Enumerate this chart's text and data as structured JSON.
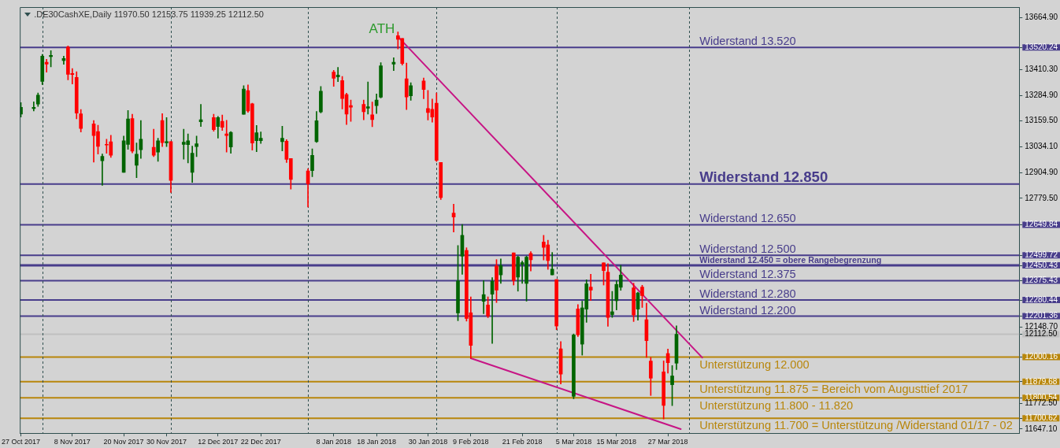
{
  "chart_data": {
    "type": "candlestick",
    "title": ".DE30CashXE,Daily 11970.50 12153.75 11939.25 12112.50",
    "x": [
      "2017-10-27",
      "2017-10-30",
      "2017-10-31",
      "2017-11-01",
      "2017-11-02",
      "2017-11-03",
      "2017-11-06",
      "2017-11-07",
      "2017-11-08",
      "2017-11-09",
      "2017-11-10",
      "2017-11-13",
      "2017-11-14",
      "2017-11-15",
      "2017-11-16",
      "2017-11-17",
      "2017-11-20",
      "2017-11-21",
      "2017-11-22",
      "2017-11-23",
      "2017-11-24",
      "2017-11-27",
      "2017-11-28",
      "2017-11-29",
      "2017-11-30",
      "2017-12-01",
      "2017-12-04",
      "2017-12-05",
      "2017-12-06",
      "2017-12-07",
      "2017-12-08",
      "2017-12-11",
      "2017-12-12",
      "2017-12-13",
      "2017-12-14",
      "2017-12-15",
      "2017-12-18",
      "2017-12-19",
      "2017-12-20",
      "2017-12-21",
      "2017-12-22",
      "2017-12-27",
      "2017-12-28",
      "2017-12-29",
      "2018-01-02",
      "2018-01-03",
      "2018-01-04",
      "2018-01-05",
      "2018-01-08",
      "2018-01-09",
      "2018-01-10",
      "2018-01-11",
      "2018-01-12",
      "2018-01-15",
      "2018-01-16",
      "2018-01-17",
      "2018-01-18",
      "2018-01-19",
      "2018-01-22",
      "2018-01-23",
      "2018-01-24",
      "2018-01-25",
      "2018-01-26",
      "2018-01-29",
      "2018-01-30",
      "2018-01-31",
      "2018-02-01",
      "2018-02-02",
      "2018-02-05",
      "2018-02-06",
      "2018-02-07",
      "2018-02-08",
      "2018-02-09",
      "2018-02-12",
      "2018-02-13",
      "2018-02-14",
      "2018-02-15",
      "2018-02-16",
      "2018-02-19",
      "2018-02-20",
      "2018-02-21",
      "2018-02-22",
      "2018-02-23",
      "2018-02-26",
      "2018-02-27",
      "2018-02-28",
      "2018-03-01",
      "2018-03-02",
      "2018-03-05",
      "2018-03-06",
      "2018-03-07",
      "2018-03-08",
      "2018-03-09",
      "2018-03-12",
      "2018-03-13",
      "2018-03-14",
      "2018-03-15",
      "2018-03-16",
      "2018-03-19",
      "2018-03-20",
      "2018-03-21",
      "2018-03-22",
      "2018-03-23",
      "2018-03-26",
      "2018-03-27",
      "2018-03-28",
      "2018-03-29"
    ],
    "ohlc": [
      [
        13193,
        13249,
        13178,
        13226
      ],
      [
        13220,
        13253,
        13208,
        13226
      ],
      [
        13242,
        13297,
        13231,
        13286
      ],
      [
        13353,
        13486,
        13338,
        13477
      ],
      [
        13447,
        13462,
        13399,
        13438
      ],
      [
        13475,
        13504,
        13425,
        13481
      ],
      [
        13456,
        13477,
        13437,
        13466
      ],
      [
        13522,
        13527,
        13361,
        13388
      ],
      [
        13392,
        13416,
        13341,
        13387
      ],
      [
        13373,
        13401,
        13170,
        13198
      ],
      [
        13194,
        13215,
        13105,
        13122
      ],
      [
        13145,
        13161,
        12957,
        13088
      ],
      [
        13107,
        13138,
        12997,
        13034
      ],
      [
        12964,
        12997,
        12843,
        12986
      ],
      [
        13043,
        13070,
        13001,
        13041
      ],
      [
        13057,
        13089,
        12980,
        12991
      ],
      [
        12907,
        13085,
        12907,
        13062
      ],
      [
        13044,
        13211,
        13020,
        13169
      ],
      [
        13171,
        13192,
        13003,
        13011
      ],
      [
        12942,
        13051,
        12881,
        12996
      ],
      [
        13018,
        13161,
        12976,
        13070
      ],
      [
        13030,
        13119,
        12984,
        12991
      ],
      [
        13006,
        13074,
        12961,
        13062
      ],
      [
        13161,
        13195,
        13033,
        13053
      ],
      [
        13052,
        13176,
        13033,
        13058
      ],
      [
        13058,
        13058,
        12808,
        12867
      ],
      [
        13044,
        13119,
        12972,
        13055
      ],
      [
        13043,
        13096,
        12953,
        13062
      ],
      [
        12907,
        13036,
        12858,
        13001
      ],
      [
        13033,
        13085,
        12984,
        13047
      ],
      [
        13155,
        13241,
        13132,
        13165
      ],
      [
        13176,
        13192,
        13109,
        13117
      ],
      [
        13132,
        13182,
        13075,
        13176
      ],
      [
        13157,
        13188,
        13113,
        13128
      ],
      [
        13096,
        13162,
        13006,
        13088
      ],
      [
        13032,
        13107,
        13001,
        13103
      ],
      [
        13192,
        13332,
        13192,
        13316
      ],
      [
        13308,
        13336,
        13202,
        13208
      ],
      [
        13243,
        13246,
        13016,
        13051
      ],
      [
        13062,
        13137,
        13008,
        13101
      ],
      [
        13062,
        13105,
        13049,
        13074
      ],
      [
        13058,
        13133,
        13012,
        13074
      ],
      [
        13060,
        13068,
        12955,
        12971
      ],
      [
        12975,
        12975,
        12825,
        12872
      ],
      [
        12914,
        12925,
        12737,
        12851
      ],
      [
        12916,
        13022,
        12886,
        12990
      ],
      [
        13058,
        13206,
        13054,
        13160
      ],
      [
        13203,
        13328,
        13199,
        13305
      ],
      [
        13399,
        13408,
        13329,
        13369
      ],
      [
        13375,
        13422,
        13352,
        13384
      ],
      [
        13357,
        13378,
        13218,
        13269
      ],
      [
        13289,
        13296,
        13142,
        13193
      ],
      [
        13235,
        13262,
        13157,
        13227
      ],
      [
        13241,
        13262,
        13165,
        13204
      ],
      [
        13222,
        13351,
        13193,
        13229
      ],
      [
        13189,
        13252,
        13131,
        13166
      ],
      [
        13234,
        13292,
        13196,
        13262
      ],
      [
        13276,
        13445,
        13272,
        13430
      ],
      [
        13438,
        13469,
        13406,
        13447
      ],
      [
        13578,
        13596,
        13513,
        13560
      ],
      [
        13564,
        13564,
        13433,
        13441
      ],
      [
        13366,
        13443,
        13215,
        13277
      ],
      [
        13283,
        13347,
        13260,
        13332
      ],
      [
        13355,
        13370,
        13268,
        13314
      ],
      [
        13220,
        13309,
        13164,
        13201
      ],
      [
        13216,
        13267,
        13153,
        13178
      ],
      [
        13246,
        13297,
        12960,
        12966
      ],
      [
        12956,
        12956,
        12774,
        12783
      ],
      [
        12707,
        12751,
        12614,
        12688
      ],
      [
        12217,
        12548,
        12179,
        12374
      ],
      [
        12496,
        12651,
        12407,
        12598
      ],
      [
        12524,
        12537,
        12177,
        12190
      ],
      [
        12218,
        12296,
        11994,
        12058
      ],
      [
        12274,
        12376,
        12213,
        12307
      ],
      [
        12256,
        12296,
        12194,
        12202
      ],
      [
        12309,
        12391,
        12068,
        12372
      ],
      [
        12448,
        12479,
        12268,
        12329
      ],
      [
        12404,
        12482,
        12362,
        12449
      ],
      [
        12512,
        12512,
        12354,
        12376
      ],
      [
        12393,
        12496,
        12324,
        12491
      ],
      [
        12456,
        12472,
        12362,
        12464
      ],
      [
        12362,
        12496,
        12275,
        12491
      ],
      [
        12509,
        12518,
        12423,
        12478
      ],
      [
        12565,
        12598,
        12477,
        12539
      ],
      [
        12551,
        12574,
        12431,
        12474
      ],
      [
        12404,
        12514,
        12404,
        12432
      ],
      [
        12381,
        12381,
        12135,
        12153
      ],
      [
        12041,
        12077,
        11869,
        11917
      ],
      [
        11808,
        12114,
        11796,
        12109
      ],
      [
        12237,
        12258,
        12101,
        12110
      ],
      [
        12064,
        12275,
        12010,
        12242
      ],
      [
        12236,
        12380,
        12171,
        12360
      ],
      [
        12344,
        12407,
        12278,
        12329
      ],
      [
        12463,
        12463,
        12354,
        12425
      ],
      [
        12417,
        12459,
        12152,
        12195
      ],
      [
        12209,
        12323,
        12195,
        12223
      ],
      [
        12277,
        12375,
        12232,
        12357
      ],
      [
        12343,
        12451,
        12328,
        12403
      ],
      [
        12340,
        12363,
        12175,
        12207
      ],
      [
        12236,
        12319,
        12182,
        12315
      ],
      [
        12344,
        12353,
        12244,
        12302
      ],
      [
        12184,
        12265,
        11999,
        12081
      ],
      [
        11981,
        11999,
        11812,
        11897
      ],
      [
        11928,
        11982,
        11697,
        11763
      ],
      [
        12018,
        12040,
        11922,
        11973
      ],
      [
        11865,
        11959,
        11762,
        11908
      ],
      [
        11970.5,
        12153.75,
        11939.25,
        12112.5
      ]
    ],
    "colors": [
      "#006400",
      "#006400",
      "#006400",
      "#006400",
      "#ff0000",
      "#006400",
      "#006400",
      "#ff0000",
      "#ff0000",
      "#ff0000",
      "#ff0000",
      "#ff0000",
      "#ff0000",
      "#006400",
      "#ff0000",
      "#ff0000",
      "#006400",
      "#006400",
      "#ff0000",
      "#006400",
      "#006400",
      "#ff0000",
      "#006400",
      "#ff0000",
      "#006400",
      "#ff0000",
      "#006400",
      "#006400",
      "#006400",
      "#006400",
      "#006400",
      "#ff0000",
      "#006400",
      "#ff0000",
      "#ff0000",
      "#006400",
      "#006400",
      "#ff0000",
      "#ff0000",
      "#006400",
      "#006400",
      "#006400",
      "#ff0000",
      "#ff0000",
      "#ff0000",
      "#006400",
      "#006400",
      "#006400",
      "#ff0000",
      "#006400",
      "#ff0000",
      "#ff0000",
      "#ff0000",
      "#ff0000",
      "#006400",
      "#ff0000",
      "#006400",
      "#006400",
      "#006400",
      "#ff0000",
      "#ff0000",
      "#ff0000",
      "#006400",
      "#ff0000",
      "#ff0000",
      "#ff0000",
      "#ff0000",
      "#ff0000",
      "#ff0000",
      "#006400",
      "#006400",
      "#ff0000",
      "#ff0000",
      "#006400",
      "#ff0000",
      "#006400",
      "#ff0000",
      "#006400",
      "#ff0000",
      "#006400",
      "#006400",
      "#006400",
      "#ff0000",
      "#ff0000",
      "#ff0000",
      "#006400",
      "#ff0000",
      "#ff0000",
      "#006400",
      "#ff0000",
      "#006400",
      "#006400",
      "#ff0000",
      "#ff0000",
      "#ff0000",
      "#006400",
      "#006400",
      "#006400",
      "#ff0000",
      "#006400",
      "#ff0000",
      "#ff0000",
      "#ff0000",
      "#ff0000",
      "#ff0000",
      "#006400",
      "#006400"
    ],
    "series": [
      {
        "type": "line",
        "x": [
          "2018-01-23",
          "2018-04-04"
        ],
        "values": [
          13573,
          11998
        ],
        "color": "#c71585"
      },
      {
        "type": "line",
        "x": [
          "2018-02-09",
          "2018-03-30"
        ],
        "values": [
          11995,
          11647
        ],
        "color": "#c71585"
      }
    ],
    "xlim": [
      "2017-10-26T18:00",
      "2018-06-17"
    ],
    "xticks": [
      {
        "value": "2017-10-27",
        "label": "27 Oct 2017"
      },
      {
        "value": "2017-11-08",
        "label": "8 Nov 2017"
      },
      {
        "value": "2017-11-20",
        "label": "20 Nov 2017"
      },
      {
        "value": "2017-11-30",
        "label": "30 Nov 2017"
      },
      {
        "value": "2017-12-12",
        "label": "12 Dec 2017"
      },
      {
        "value": "2017-12-22",
        "label": "22 Dec 2017"
      },
      {
        "value": "2018-01-08",
        "label": "8 Jan 2018"
      },
      {
        "value": "2018-01-18",
        "label": "18 Jan 2018"
      },
      {
        "value": "2018-01-30",
        "label": "30 Jan 2018"
      },
      {
        "value": "2018-02-09",
        "label": "9 Feb 2018"
      },
      {
        "value": "2018-02-21",
        "label": "21 Feb 2018"
      },
      {
        "value": "2018-03-05",
        "label": "5 Mar 2018"
      },
      {
        "value": "2018-03-15",
        "label": "15 Mar 2018"
      },
      {
        "value": "2018-03-27",
        "label": "27 Mar 2018"
      }
    ],
    "ylim": [
      11627,
      13718
    ],
    "yticks": [
      {
        "value": 13664.9,
        "label": "13664.90"
      },
      {
        "value": 13520.24,
        "label": "13520.24"
      },
      {
        "value": 13410.3,
        "label": "13410.30"
      },
      {
        "value": 13284.9,
        "label": "13284.90"
      },
      {
        "value": 13159.5,
        "label": "13159.50"
      },
      {
        "value": 13034.1,
        "label": "13034.10"
      },
      {
        "value": 12904.9,
        "label": "12904.90"
      },
      {
        "value": 12779.5,
        "label": "12779.50"
      },
      {
        "value": 12649.84,
        "label": "12649.84"
      },
      {
        "value": 12499.72,
        "label": "12499.72"
      },
      {
        "value": 12450.43,
        "label": "12450.43"
      },
      {
        "value": 12375.43,
        "label": "12375.43"
      },
      {
        "value": 12280.44,
        "label": "12280.44"
      },
      {
        "value": 12201.36,
        "label": "12201.36"
      },
      {
        "value": 12148.7,
        "label": "12148.70"
      },
      {
        "value": 12112.5,
        "label": "12112.50"
      },
      {
        "value": 12000.16,
        "label": "12000.16"
      },
      {
        "value": 11879.68,
        "label": "11879.68"
      },
      {
        "value": 11800.54,
        "label": "11800.54"
      },
      {
        "value": 11772.5,
        "label": "11772.50"
      },
      {
        "value": 11700.62,
        "label": "11700.62"
      },
      {
        "value": 11647.1,
        "label": "11647.10"
      }
    ],
    "ref_lines": [
      {
        "axis": "y",
        "value": 13520.24,
        "label": "Widerstand 13.520",
        "color": "#483d8b"
      },
      {
        "axis": "y",
        "value": 12850,
        "label": "Widerstand 12.850",
        "color": "#483d8b"
      },
      {
        "axis": "y",
        "value": 12649.84,
        "label": "Widerstand 12.650",
        "color": "#483d8b"
      },
      {
        "axis": "y",
        "value": 12499.72,
        "label": "Widerstand 12.500",
        "color": "#483d8b"
      },
      {
        "axis": "y",
        "value": 12450.43,
        "label": "Widerstand 12.450 = obere Rangebegrenzung",
        "color": "#483d8b"
      },
      {
        "axis": "y",
        "value": 12375.43,
        "label": "Widerstand 12.375",
        "color": "#483d8b"
      },
      {
        "axis": "y",
        "value": 12280.44,
        "label": "Widerstand 12.280",
        "color": "#483d8b"
      },
      {
        "axis": "y",
        "value": 12201.36,
        "label": "Widerstand 12.200",
        "color": "#483d8b"
      },
      {
        "axis": "y",
        "value": 12112.5,
        "label": null,
        "color": "#c0c0c0"
      },
      {
        "axis": "y",
        "value": 12000.16,
        "label": "Unterstützung 12.000",
        "color": "#b8860b"
      },
      {
        "axis": "y",
        "value": 11879.68,
        "label": "Unterstützung 11.875 = Bereich vom Augusttief 2017",
        "color": "#b8860b"
      },
      {
        "axis": "y",
        "value": 11800.54,
        "label": "Unterstützung 11.800 - 11.820",
        "color": "#b8860b"
      },
      {
        "axis": "y",
        "value": 11700.62,
        "label": "Unterstützung 11.700 = Unterstützung /Widerstand 01/17 - 02",
        "color": "#b8860b"
      },
      {
        "axis": "x",
        "value": "2017-11-01",
        "label": null,
        "color": "#2f4f4f",
        "line_style": "dashed"
      },
      {
        "axis": "x",
        "value": "2017-12-01",
        "label": null,
        "color": "#2f4f4f",
        "line_style": "dashed"
      },
      {
        "axis": "x",
        "value": "2018-01-02",
        "label": null,
        "color": "#2f4f4f",
        "line_style": "dashed"
      },
      {
        "axis": "x",
        "value": "2018-02-01",
        "label": null,
        "color": "#2f4f4f",
        "line_style": "dashed"
      },
      {
        "axis": "x",
        "value": "2018-03-01",
        "label": null,
        "color": "#2f4f4f",
        "line_style": "dashed"
      },
      {
        "axis": "x",
        "value": "2018-04-01",
        "label": null,
        "color": "#2f4f4f",
        "line_style": "dashed"
      }
    ],
    "annotations": [
      {
        "text": "ATH",
        "x": "2018-01-23",
        "y": 13596
      }
    ]
  }
}
